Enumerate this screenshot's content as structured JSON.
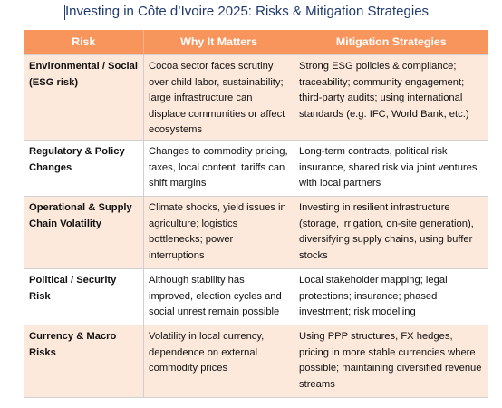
{
  "title": "Investing in Côte d’Ivoire 2025: Risks & Mitigation Strategies",
  "table": {
    "headers": [
      "Risk",
      "Why It Matters",
      "Mitigation Strategies"
    ],
    "rows": [
      {
        "risk": "Environmental / Social (ESG risk)",
        "why": "Cocoa sector faces scrutiny over child labor, sustainability; large infrastructure can displace communities or affect ecosystems",
        "mitigation": "Strong ESG policies & compliance; traceability; community engagement; third-party audits; using international standards (e.g. IFC, World Bank, etc.)"
      },
      {
        "risk": "Regulatory & Policy Changes",
        "why": "Changes to commodity pricing, taxes, local content, tariffs can shift margins",
        "mitigation": "Long-term contracts, political risk insurance, shared risk via joint ventures with local partners"
      },
      {
        "risk": "Operational & Supply Chain Volatility",
        "why": "Climate shocks, yield issues in agriculture; logistics bottlenecks; power interruptions",
        "mitigation": "Investing in resilient infrastructure (storage, irrigation, on-site generation), diversifying supply chains, using buffer stocks"
      },
      {
        "risk": "Political / Security Risk",
        "why": "Although stability has improved, election cycles and social unrest remain possible",
        "mitigation": "Local stakeholder mapping; legal protections; insurance; phased investment; risk modelling"
      },
      {
        "risk": "Currency & Macro Risks",
        "why": "Volatility in local currency, dependence on external commodity prices",
        "mitigation": "Using PPP structures, FX hedges, pricing in more stable currencies where possible; maintaining diversified revenue streams"
      }
    ]
  },
  "colors": {
    "header_bg": "#f7955c",
    "stripe_bg": "#fce9dc",
    "title_text": "#1f3a6e"
  }
}
